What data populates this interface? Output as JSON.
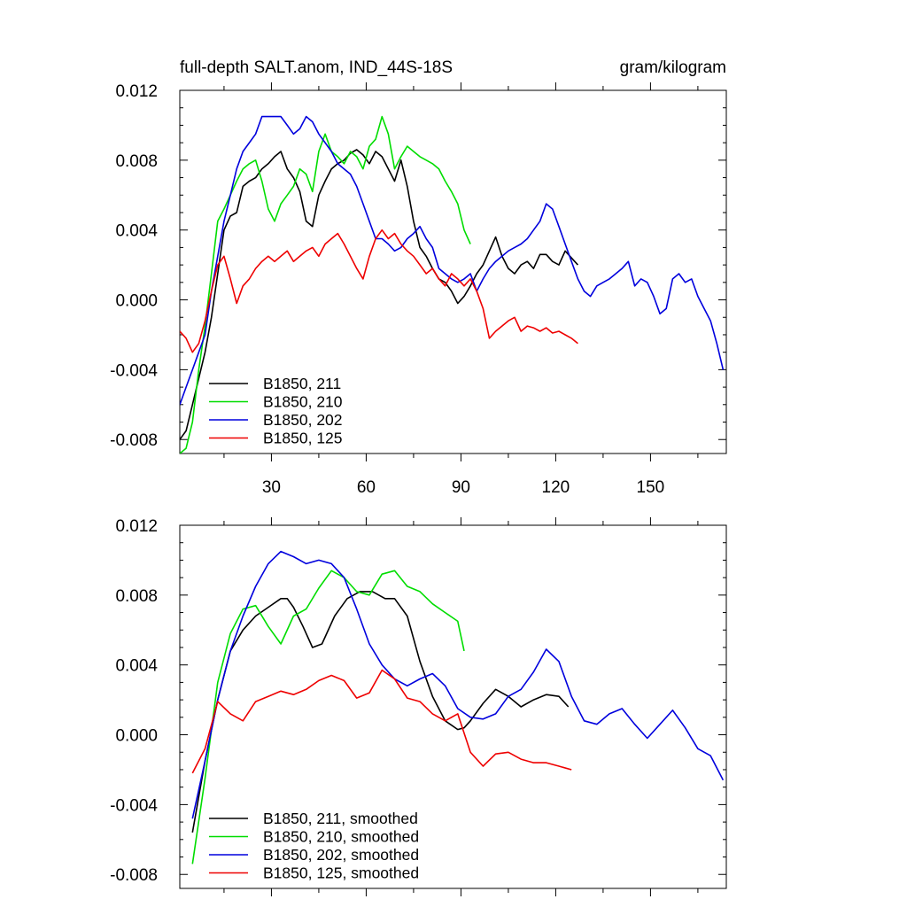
{
  "figure": {
    "title_left": "full-depth SALT.anom, IND_44S-18S",
    "title_right": "gram/kilogram"
  },
  "chart_data": [
    {
      "type": "line",
      "title": "full-depth SALT.anom, IND_44S-18S",
      "units": "gram/kilogram",
      "xlim": [
        1,
        174
      ],
      "ylim": [
        -0.0088,
        0.012
      ],
      "yticks": [
        -0.008,
        -0.004,
        0.0,
        0.004,
        0.008,
        0.012
      ],
      "ytick_labels": [
        "-0.008",
        "-0.004",
        "0.000",
        "0.004",
        "0.008",
        "0.012"
      ],
      "xticks": [
        30,
        60,
        90,
        120,
        150
      ],
      "xtick_labels": [
        "30",
        "60",
        "90",
        "120",
        "150"
      ],
      "legend_position": "bottom-left",
      "series": [
        {
          "name": "B1850, 211",
          "color": "#000000",
          "x": [
            1,
            3,
            5,
            7,
            9,
            11,
            13,
            15,
            17,
            19,
            21,
            23,
            25,
            27,
            29,
            31,
            33,
            35,
            37,
            39,
            41,
            43,
            45,
            47,
            49,
            51,
            53,
            55,
            57,
            59,
            61,
            63,
            65,
            67,
            69,
            71,
            73,
            75,
            77,
            79,
            81,
            83,
            85,
            87,
            89,
            91,
            93,
            95,
            97,
            99,
            101,
            103,
            105,
            107,
            109,
            111,
            113,
            115,
            117,
            119,
            121,
            123,
            125,
            127
          ],
          "y": [
            -0.008,
            -0.0075,
            -0.006,
            -0.0045,
            -0.003,
            -0.001,
            0.0015,
            0.004,
            0.0048,
            0.005,
            0.0065,
            0.0068,
            0.007,
            0.0075,
            0.0078,
            0.0082,
            0.0085,
            0.0075,
            0.007,
            0.0062,
            0.0045,
            0.0042,
            0.006,
            0.0068,
            0.0075,
            0.0078,
            0.008,
            0.0084,
            0.0086,
            0.0083,
            0.0078,
            0.0085,
            0.0082,
            0.0075,
            0.0068,
            0.008,
            0.0065,
            0.0045,
            0.003,
            0.0025,
            0.0018,
            0.0012,
            0.001,
            0.0005,
            -0.0002,
            0.0002,
            0.0008,
            0.0015,
            0.002,
            0.0028,
            0.0036,
            0.0025,
            0.0018,
            0.0015,
            0.002,
            0.0022,
            0.0018,
            0.0026,
            0.0026,
            0.0022,
            0.002,
            0.0028,
            0.0024,
            0.002
          ]
        },
        {
          "name": "B1850, 210",
          "color": "#00dd00",
          "x": [
            1,
            3,
            5,
            7,
            9,
            11,
            13,
            15,
            17,
            19,
            21,
            23,
            25,
            27,
            29,
            31,
            33,
            35,
            37,
            39,
            41,
            43,
            45,
            47,
            49,
            51,
            53,
            55,
            57,
            59,
            61,
            63,
            65,
            67,
            69,
            71,
            73,
            75,
            77,
            79,
            81,
            83,
            85,
            87,
            89,
            91,
            93
          ],
          "y": [
            -0.0088,
            -0.0085,
            -0.007,
            -0.004,
            -0.0015,
            0.0015,
            0.0045,
            0.0052,
            0.006,
            0.0068,
            0.0075,
            0.0078,
            0.008,
            0.0068,
            0.0052,
            0.0045,
            0.0055,
            0.006,
            0.0065,
            0.0075,
            0.0072,
            0.0062,
            0.0085,
            0.0095,
            0.0085,
            0.0082,
            0.0078,
            0.0085,
            0.0082,
            0.0075,
            0.0088,
            0.0092,
            0.0105,
            0.0095,
            0.0075,
            0.0082,
            0.0088,
            0.0085,
            0.0082,
            0.008,
            0.0078,
            0.0075,
            0.0068,
            0.0062,
            0.0055,
            0.004,
            0.0032
          ]
        },
        {
          "name": "B1850, 202",
          "color": "#0000dd",
          "x": [
            1,
            3,
            5,
            7,
            9,
            11,
            13,
            15,
            17,
            19,
            21,
            23,
            25,
            27,
            29,
            31,
            33,
            35,
            37,
            39,
            41,
            43,
            45,
            47,
            49,
            51,
            53,
            55,
            57,
            59,
            61,
            63,
            65,
            67,
            69,
            71,
            73,
            75,
            77,
            79,
            81,
            83,
            85,
            87,
            89,
            91,
            93,
            95,
            97,
            99,
            101,
            103,
            105,
            107,
            109,
            111,
            113,
            115,
            117,
            119,
            121,
            123,
            125,
            127,
            129,
            131,
            133,
            135,
            137,
            139,
            141,
            143,
            145,
            147,
            149,
            151,
            153,
            155,
            157,
            159,
            161,
            163,
            165,
            167,
            169,
            171,
            173
          ],
          "y": [
            -0.006,
            -0.005,
            -0.004,
            -0.003,
            -0.002,
            0.0005,
            0.0025,
            0.0045,
            0.006,
            0.0075,
            0.0085,
            0.009,
            0.0095,
            0.0105,
            0.0105,
            0.0105,
            0.0105,
            0.01,
            0.0095,
            0.0098,
            0.0105,
            0.0102,
            0.0095,
            0.009,
            0.0085,
            0.0078,
            0.0075,
            0.0072,
            0.0065,
            0.0055,
            0.0045,
            0.0035,
            0.0035,
            0.0032,
            0.0028,
            0.003,
            0.0035,
            0.0038,
            0.0042,
            0.0035,
            0.003,
            0.0018,
            0.0015,
            0.0012,
            0.001,
            0.0012,
            0.0015,
            0.0005,
            0.0012,
            0.0018,
            0.0022,
            0.0025,
            0.0028,
            0.003,
            0.0032,
            0.0035,
            0.004,
            0.0045,
            0.0055,
            0.0052,
            0.0042,
            0.0032,
            0.0022,
            0.0012,
            0.0005,
            0.0002,
            0.0008,
            0.001,
            0.0012,
            0.0015,
            0.0018,
            0.0022,
            0.0008,
            0.0012,
            0.001,
            0.0002,
            -0.0008,
            -0.0005,
            0.0012,
            0.0015,
            0.001,
            0.0012,
            0.0002,
            -0.0005,
            -0.0012,
            -0.0025,
            -0.004
          ]
        },
        {
          "name": "B1850, 125",
          "color": "#ee0000",
          "x": [
            1,
            3,
            5,
            7,
            9,
            11,
            13,
            15,
            17,
            19,
            21,
            23,
            25,
            27,
            29,
            31,
            33,
            35,
            37,
            39,
            41,
            43,
            45,
            47,
            49,
            51,
            53,
            55,
            57,
            59,
            61,
            63,
            65,
            67,
            69,
            71,
            73,
            75,
            77,
            79,
            81,
            83,
            85,
            87,
            89,
            91,
            93,
            95,
            97,
            99,
            101,
            103,
            105,
            107,
            109,
            111,
            113,
            115,
            117,
            119,
            121,
            123,
            125,
            127
          ],
          "y": [
            -0.0018,
            -0.0022,
            -0.003,
            -0.0025,
            -0.0012,
            0.0005,
            0.002,
            0.0025,
            0.0012,
            -0.0002,
            0.0008,
            0.0012,
            0.0018,
            0.0022,
            0.0025,
            0.0022,
            0.0025,
            0.0028,
            0.0022,
            0.0025,
            0.0028,
            0.003,
            0.0025,
            0.0032,
            0.0035,
            0.0038,
            0.0032,
            0.0025,
            0.0018,
            0.0012,
            0.0025,
            0.0035,
            0.004,
            0.0035,
            0.0038,
            0.0032,
            0.0028,
            0.0025,
            0.002,
            0.0015,
            0.0018,
            0.0012,
            0.0008,
            0.0015,
            0.0012,
            0.0008,
            0.0012,
            0.0005,
            -0.0005,
            -0.0022,
            -0.0018,
            -0.0015,
            -0.0012,
            -0.001,
            -0.0018,
            -0.0015,
            -0.0016,
            -0.0018,
            -0.0016,
            -0.0019,
            -0.0018,
            -0.002,
            -0.0022,
            -0.0025
          ]
        }
      ]
    },
    {
      "type": "line",
      "xlim": [
        1,
        174
      ],
      "ylim": [
        -0.0088,
        0.012
      ],
      "yticks": [
        -0.008,
        -0.004,
        0.0,
        0.004,
        0.008,
        0.012
      ],
      "ytick_labels": [
        "-0.008",
        "-0.004",
        "0.000",
        "0.004",
        "0.008",
        "0.012"
      ],
      "xticks": [
        30,
        60,
        90,
        120,
        150
      ],
      "legend_position": "bottom-left",
      "series": [
        {
          "name": "B1850, 211, smoothed",
          "color": "#000000",
          "x": [
            5,
            9,
            13,
            17,
            21,
            25,
            29,
            33,
            35,
            37,
            40,
            43,
            46,
            50,
            54,
            58,
            62,
            66,
            69,
            73,
            77,
            81,
            85,
            89,
            91,
            93,
            97,
            101,
            105,
            109,
            113,
            117,
            121,
            124
          ],
          "y": [
            -0.0056,
            -0.0015,
            0.002,
            0.0048,
            0.006,
            0.0068,
            0.0073,
            0.0078,
            0.0078,
            0.0073,
            0.0062,
            0.005,
            0.0052,
            0.0068,
            0.0078,
            0.0082,
            0.0082,
            0.0078,
            0.0078,
            0.0068,
            0.0042,
            0.0022,
            0.0008,
            0.0003,
            0.0004,
            0.0008,
            0.0018,
            0.0026,
            0.0022,
            0.0016,
            0.002,
            0.0023,
            0.0022,
            0.0016
          ]
        },
        {
          "name": "B1850, 210, smoothed",
          "color": "#00dd00",
          "x": [
            5,
            9,
            13,
            17,
            21,
            25,
            29,
            33,
            37,
            41,
            45,
            49,
            53,
            57,
            61,
            65,
            69,
            73,
            77,
            81,
            85,
            89,
            91
          ],
          "y": [
            -0.0074,
            -0.0025,
            0.003,
            0.0058,
            0.0072,
            0.0074,
            0.0062,
            0.0052,
            0.0068,
            0.0072,
            0.0084,
            0.0094,
            0.009,
            0.0082,
            0.008,
            0.0092,
            0.0094,
            0.0085,
            0.0082,
            0.0075,
            0.007,
            0.0065,
            0.0048
          ]
        },
        {
          "name": "B1850, 202, smoothed",
          "color": "#0000dd",
          "x": [
            5,
            9,
            13,
            17,
            21,
            25,
            29,
            33,
            37,
            41,
            45,
            49,
            53,
            57,
            61,
            65,
            69,
            73,
            77,
            81,
            85,
            89,
            93,
            97,
            101,
            105,
            109,
            113,
            117,
            121,
            125,
            129,
            133,
            137,
            141,
            145,
            149,
            153,
            157,
            161,
            165,
            169,
            173
          ],
          "y": [
            -0.0048,
            -0.0015,
            0.002,
            0.0048,
            0.0068,
            0.0085,
            0.0098,
            0.0105,
            0.0102,
            0.0098,
            0.01,
            0.0098,
            0.009,
            0.0072,
            0.0052,
            0.004,
            0.0032,
            0.0028,
            0.0032,
            0.0035,
            0.0028,
            0.0015,
            0.001,
            0.0009,
            0.0012,
            0.0022,
            0.0026,
            0.0036,
            0.0049,
            0.0042,
            0.0022,
            0.0008,
            0.0006,
            0.0012,
            0.0015,
            0.0006,
            -0.0002,
            0.0006,
            0.0014,
            0.0004,
            -0.0008,
            -0.0012,
            -0.0026
          ]
        },
        {
          "name": "B1850, 125, smoothed",
          "color": "#ee0000",
          "x": [
            5,
            9,
            13,
            17,
            21,
            25,
            29,
            33,
            37,
            41,
            45,
            49,
            53,
            57,
            61,
            65,
            69,
            73,
            77,
            81,
            85,
            89,
            93,
            97,
            101,
            105,
            109,
            113,
            117,
            121,
            125
          ],
          "y": [
            -0.0022,
            -0.0008,
            0.0019,
            0.0012,
            0.0008,
            0.0019,
            0.0022,
            0.0025,
            0.0023,
            0.0026,
            0.0031,
            0.0034,
            0.0031,
            0.0021,
            0.0024,
            0.0037,
            0.0032,
            0.0021,
            0.0019,
            0.0012,
            0.0008,
            0.0012,
            -0.001,
            -0.0018,
            -0.0011,
            -0.001,
            -0.0014,
            -0.0016,
            -0.0016,
            -0.0018,
            -0.002
          ]
        }
      ]
    }
  ]
}
